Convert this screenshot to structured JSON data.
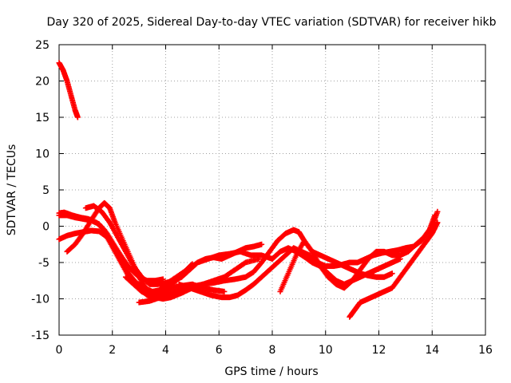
{
  "chart_data": {
    "type": "scatter",
    "title": "Day 320 of 2025, Sidereal Day-to-day VTEC variation (SDTVAR) for receiver hikb",
    "xlabel": "GPS time / hours",
    "ylabel": "SDTVAR / TECUs",
    "xlim": [
      0,
      16
    ],
    "ylim": [
      -15,
      25
    ],
    "xticks": [
      0,
      2,
      4,
      6,
      8,
      10,
      12,
      14,
      16
    ],
    "yticks": [
      -15,
      -10,
      -5,
      0,
      5,
      10,
      15,
      20,
      25
    ],
    "grid": true,
    "marker": "+",
    "color": "#ff0000",
    "series": [
      {
        "name": "arc1",
        "x": [
          0.0,
          0.15,
          0.3,
          0.45,
          0.6,
          0.7
        ],
        "y": [
          22.5,
          21.5,
          20.0,
          18.0,
          16.0,
          15.0
        ]
      },
      {
        "name": "arc2",
        "x": [
          0.0,
          0.3,
          0.6,
          0.9,
          1.2,
          1.5,
          1.8,
          2.1,
          2.4,
          2.7,
          3.0,
          3.3,
          3.6,
          3.9
        ],
        "y": [
          1.5,
          1.5,
          1.2,
          1.0,
          0.8,
          0.3,
          -1.0,
          -2.8,
          -4.5,
          -6.0,
          -7.0,
          -7.5,
          -7.5,
          -7.3
        ]
      },
      {
        "name": "arc3",
        "x": [
          0.0,
          0.2,
          0.5,
          0.8,
          1.1,
          1.4,
          1.7,
          2.0,
          2.3,
          2.6,
          2.9,
          3.2,
          3.5,
          3.8,
          4.1,
          4.4,
          4.7,
          5.0
        ],
        "y": [
          1.8,
          1.9,
          1.5,
          1.2,
          1.0,
          0.5,
          -0.5,
          -2.5,
          -4.5,
          -6.5,
          -7.8,
          -8.5,
          -9.0,
          -8.8,
          -8.2,
          -7.5,
          -6.3,
          -5.2
        ]
      },
      {
        "name": "arc4",
        "x": [
          0.0,
          0.3,
          0.6,
          0.9,
          1.2,
          1.5,
          1.8,
          2.1,
          2.4,
          2.7,
          3.0,
          3.3,
          3.6,
          3.9,
          4.2,
          4.6,
          5.0,
          5.4,
          5.8,
          6.2
        ],
        "y": [
          -1.8,
          -1.3,
          -1.0,
          -0.8,
          -0.6,
          -0.7,
          -1.5,
          -3.5,
          -5.5,
          -7.5,
          -8.5,
          -9.5,
          -9.8,
          -9.2,
          -8.5,
          -8.2,
          -8.0,
          -8.5,
          -8.8,
          -9.0
        ]
      },
      {
        "name": "arc5",
        "x": [
          0.3,
          0.6,
          0.9,
          1.2,
          1.5,
          1.7,
          1.9,
          2.1,
          2.4,
          2.7,
          3.0,
          3.3,
          3.6,
          3.9,
          4.2,
          4.6,
          5.0,
          5.4,
          5.8,
          6.2,
          6.6,
          7.0,
          7.5
        ],
        "y": [
          -3.5,
          -2.5,
          -1.0,
          0.8,
          2.5,
          3.2,
          2.5,
          0.5,
          -2.0,
          -4.5,
          -7.0,
          -8.8,
          -9.8,
          -10.0,
          -9.8,
          -9.2,
          -8.5,
          -8.0,
          -7.5,
          -7.0,
          -6.0,
          -5.0,
          -4.5
        ]
      },
      {
        "name": "arc6",
        "x": [
          1.0,
          1.3,
          1.6,
          1.9,
          2.2,
          2.5,
          2.8,
          3.1,
          3.4,
          3.7,
          4.0,
          4.3,
          4.6,
          4.9,
          5.2,
          5.5,
          5.8,
          6.1,
          6.4,
          6.7,
          7.0,
          7.3,
          7.6
        ],
        "y": [
          2.5,
          2.8,
          2.0,
          0.5,
          -1.5,
          -3.5,
          -5.5,
          -7.0,
          -8.0,
          -8.0,
          -7.8,
          -7.5,
          -7.0,
          -6.0,
          -5.0,
          -4.5,
          -4.3,
          -4.5,
          -4.0,
          -3.5,
          -3.0,
          -2.8,
          -2.5
        ]
      },
      {
        "name": "arc7",
        "x": [
          2.5,
          2.8,
          3.1,
          3.4,
          3.7,
          4.0,
          4.4,
          4.8,
          5.2,
          5.6,
          6.0,
          6.4,
          6.8,
          7.2,
          7.6,
          8.0,
          8.3,
          8.6,
          8.9,
          9.2,
          9.5,
          9.8,
          10.1,
          10.4,
          10.7,
          11.0,
          11.3,
          11.6,
          11.9,
          12.2,
          12.5,
          12.8
        ],
        "y": [
          -7.0,
          -8.0,
          -9.0,
          -9.5,
          -9.0,
          -8.0,
          -7.0,
          -6.0,
          -5.0,
          -4.5,
          -4.0,
          -3.8,
          -3.5,
          -4.0,
          -4.0,
          -4.5,
          -3.5,
          -3.0,
          -3.5,
          -4.2,
          -5.0,
          -5.5,
          -6.5,
          -7.5,
          -8.0,
          -7.5,
          -7.0,
          -6.5,
          -6.0,
          -5.5,
          -5.0,
          -4.5
        ]
      },
      {
        "name": "arc8",
        "x": [
          3.0,
          3.4,
          3.8,
          4.2,
          4.6,
          5.0,
          5.4,
          5.8,
          6.2,
          6.6,
          7.0,
          7.3,
          7.6,
          7.9,
          8.2,
          8.5,
          8.8,
          9.0,
          9.2,
          9.5,
          9.8,
          10.1,
          10.4,
          10.7,
          11.0,
          11.3,
          11.6,
          11.9,
          12.2,
          12.5
        ],
        "y": [
          -10.5,
          -10.3,
          -9.8,
          -9.2,
          -8.8,
          -8.3,
          -8.0,
          -7.8,
          -7.5,
          -7.3,
          -7.0,
          -6.3,
          -5.0,
          -3.5,
          -2.0,
          -1.0,
          -0.5,
          -0.8,
          -2.0,
          -3.5,
          -4.0,
          -4.5,
          -5.0,
          -5.5,
          -6.0,
          -6.5,
          -6.8,
          -7.0,
          -7.0,
          -6.5
        ]
      },
      {
        "name": "arc9",
        "x": [
          4.5,
          4.9,
          5.3,
          5.7,
          6.1,
          6.4,
          6.7,
          7.0,
          7.3,
          7.6,
          7.9,
          8.2,
          8.5,
          8.8,
          9.1,
          9.4,
          9.7,
          10.0,
          10.3,
          10.6,
          10.9,
          11.2,
          11.5,
          11.8,
          12.1,
          12.4,
          12.7,
          13.0,
          13.3,
          13.6,
          13.9,
          14.1
        ],
        "y": [
          -8.0,
          -8.5,
          -9.0,
          -9.5,
          -9.8,
          -9.8,
          -9.5,
          -8.8,
          -8.0,
          -7.0,
          -6.0,
          -5.0,
          -4.0,
          -3.0,
          -3.5,
          -4.0,
          -5.0,
          -5.5,
          -5.5,
          -5.3,
          -5.0,
          -5.0,
          -4.5,
          -4.0,
          -3.7,
          -3.5,
          -3.3,
          -3.0,
          -2.8,
          -2.0,
          -0.5,
          1.5
        ]
      },
      {
        "name": "arc10",
        "x": [
          8.3,
          8.6,
          8.9,
          9.2,
          9.5,
          9.8,
          10.1,
          10.4,
          10.7,
          11.0,
          11.3,
          11.6,
          11.9,
          12.2,
          12.5,
          12.8,
          13.1,
          13.4,
          13.7,
          14.0,
          14.2
        ],
        "y": [
          -9.0,
          -6.5,
          -4.0,
          -2.0,
          -3.5,
          -5.5,
          -7.0,
          -8.0,
          -8.5,
          -7.5,
          -6.0,
          -4.5,
          -3.5,
          -3.5,
          -4.0,
          -4.0,
          -3.5,
          -2.5,
          -1.5,
          0.0,
          2.0
        ]
      },
      {
        "name": "arc11",
        "x": [
          10.9,
          11.1,
          11.3,
          11.6,
          11.9,
          12.2,
          12.5,
          12.8,
          13.1,
          13.4,
          13.7,
          14.0,
          14.2
        ],
        "y": [
          -12.5,
          -11.5,
          -10.5,
          -10.0,
          -9.5,
          -9.0,
          -8.5,
          -7.0,
          -5.5,
          -4.0,
          -2.5,
          -1.0,
          0.5
        ]
      }
    ]
  }
}
